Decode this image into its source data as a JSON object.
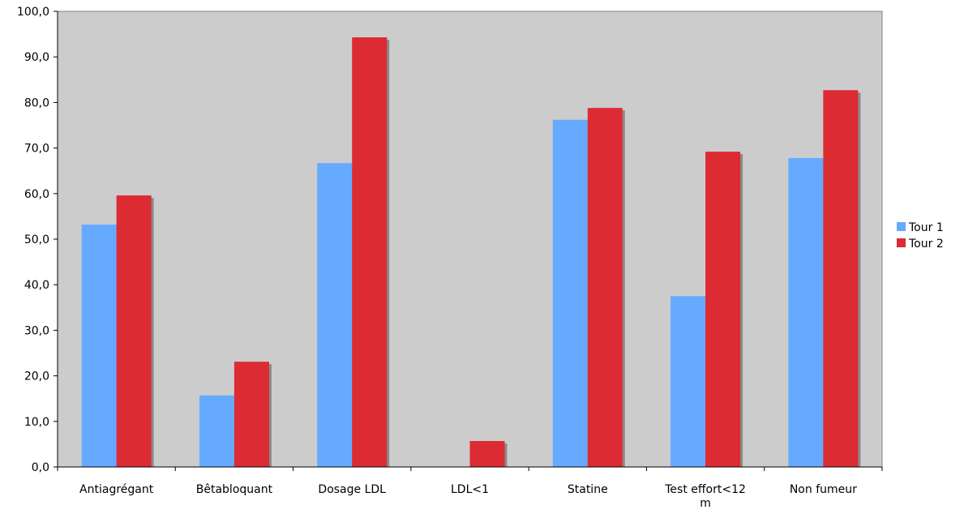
{
  "chart_data": {
    "type": "bar",
    "title": "",
    "xlabel": "",
    "ylabel": "",
    "categories": [
      "Antiagrégant",
      "Bêtabloquant",
      "Dosage LDL",
      "LDL<1",
      "Statine",
      "Test effort<12 m",
      "Non fumeur"
    ],
    "category_label_lines": [
      [
        "Antiagrégant"
      ],
      [
        "Bêtabloquant"
      ],
      [
        "Dosage LDL"
      ],
      [
        "LDL<1"
      ],
      [
        "Statine"
      ],
      [
        "Test effort<12",
        "m"
      ],
      [
        "Non fumeur"
      ]
    ],
    "series": [
      {
        "name": "Tour 1",
        "color": "#66aaff",
        "values": [
          53.2,
          15.7,
          66.7,
          0.0,
          76.2,
          37.5,
          67.8
        ]
      },
      {
        "name": "Tour 2",
        "color": "#dd2b33",
        "values": [
          59.6,
          23.1,
          94.3,
          5.7,
          78.8,
          69.2,
          82.7
        ]
      }
    ],
    "ylim": [
      0,
      100
    ],
    "y_ticks": [
      "0,0",
      "10,0",
      "20,0",
      "30,0",
      "40,0",
      "50,0",
      "60,0",
      "70,0",
      "80,0",
      "90,0",
      "100,0"
    ],
    "grid": false,
    "legend_position": "right",
    "plot_background": "#cccccc"
  }
}
